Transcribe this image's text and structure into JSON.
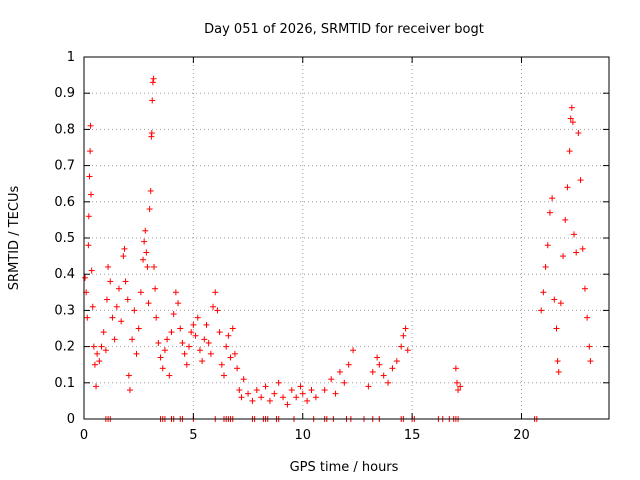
{
  "chart_data": {
    "type": "scatter",
    "title": "Day 051 of 2026, SRMTID for receiver bogt",
    "xlabel": "GPS time / hours",
    "ylabel": "SRMTID / TECUs",
    "xlim": [
      0,
      24
    ],
    "ylim": [
      0,
      1
    ],
    "xticks": [
      0,
      5,
      10,
      15,
      20
    ],
    "yticks": [
      0,
      0.1,
      0.2,
      0.3,
      0.4,
      0.5,
      0.6,
      0.7,
      0.8,
      0.9,
      1
    ],
    "grid": true,
    "marker": "+",
    "color": "#ff0000",
    "series": [
      {
        "name": "SRMTID",
        "points": [
          [
            0.05,
            0.39
          ],
          [
            0.1,
            0.35
          ],
          [
            0.15,
            0.28
          ],
          [
            0.2,
            0.48
          ],
          [
            0.22,
            0.56
          ],
          [
            0.25,
            0.67
          ],
          [
            0.28,
            0.74
          ],
          [
            0.3,
            0.81
          ],
          [
            0.32,
            0.62
          ],
          [
            0.35,
            0.41
          ],
          [
            0.4,
            0.31
          ],
          [
            0.45,
            0.2
          ],
          [
            0.5,
            0.15
          ],
          [
            0.55,
            0.09
          ],
          [
            0.6,
            0.18
          ],
          [
            0.7,
            0.16
          ],
          [
            0.8,
            0.2
          ],
          [
            0.9,
            0.24
          ],
          [
            1.0,
            0.19
          ],
          [
            1.05,
            0.33
          ],
          [
            1.1,
            0.42
          ],
          [
            1.2,
            0.38
          ],
          [
            1.3,
            0.28
          ],
          [
            1.4,
            0.22
          ],
          [
            1.5,
            0.31
          ],
          [
            1.6,
            0.36
          ],
          [
            1.7,
            0.27
          ],
          [
            1.8,
            0.45
          ],
          [
            1.85,
            0.47
          ],
          [
            1.9,
            0.38
          ],
          [
            2.0,
            0.33
          ],
          [
            2.05,
            0.12
          ],
          [
            2.1,
            0.08
          ],
          [
            2.2,
            0.22
          ],
          [
            2.3,
            0.3
          ],
          [
            2.4,
            0.18
          ],
          [
            2.5,
            0.25
          ],
          [
            2.6,
            0.35
          ],
          [
            2.7,
            0.44
          ],
          [
            2.75,
            0.49
          ],
          [
            2.8,
            0.52
          ],
          [
            2.85,
            0.46
          ],
          [
            2.9,
            0.42
          ],
          [
            2.95,
            0.32
          ],
          [
            3.0,
            0.58
          ],
          [
            3.05,
            0.63
          ],
          [
            3.08,
            0.78
          ],
          [
            3.1,
            0.79
          ],
          [
            3.12,
            0.88
          ],
          [
            3.15,
            0.93
          ],
          [
            3.18,
            0.94
          ],
          [
            3.2,
            0.42
          ],
          [
            3.25,
            0.36
          ],
          [
            3.3,
            0.28
          ],
          [
            3.4,
            0.21
          ],
          [
            3.5,
            0.17
          ],
          [
            3.6,
            0.14
          ],
          [
            3.7,
            0.19
          ],
          [
            3.8,
            0.22
          ],
          [
            3.9,
            0.12
          ],
          [
            4.0,
            0.24
          ],
          [
            4.1,
            0.29
          ],
          [
            4.2,
            0.35
          ],
          [
            4.3,
            0.32
          ],
          [
            4.4,
            0.25
          ],
          [
            4.5,
            0.21
          ],
          [
            4.6,
            0.18
          ],
          [
            4.7,
            0.15
          ],
          [
            4.8,
            0.2
          ],
          [
            4.9,
            0.24
          ],
          [
            5.0,
            0.26
          ],
          [
            5.1,
            0.23
          ],
          [
            5.2,
            0.28
          ],
          [
            5.3,
            0.19
          ],
          [
            5.4,
            0.16
          ],
          [
            5.5,
            0.22
          ],
          [
            5.6,
            0.26
          ],
          [
            5.7,
            0.21
          ],
          [
            5.8,
            0.18
          ],
          [
            5.9,
            0.31
          ],
          [
            6.0,
            0.35
          ],
          [
            6.1,
            0.3
          ],
          [
            6.2,
            0.24
          ],
          [
            6.3,
            0.15
          ],
          [
            6.4,
            0.12
          ],
          [
            6.5,
            0.2
          ],
          [
            6.6,
            0.23
          ],
          [
            6.7,
            0.17
          ],
          [
            6.8,
            0.25
          ],
          [
            6.9,
            0.18
          ],
          [
            7.0,
            0.14
          ],
          [
            7.1,
            0.08
          ],
          [
            7.2,
            0.06
          ],
          [
            7.3,
            0.11
          ],
          [
            7.5,
            0.07
          ],
          [
            7.7,
            0.05
          ],
          [
            7.9,
            0.08
          ],
          [
            8.1,
            0.06
          ],
          [
            8.3,
            0.09
          ],
          [
            8.5,
            0.05
          ],
          [
            8.7,
            0.07
          ],
          [
            8.9,
            0.1
          ],
          [
            9.1,
            0.06
          ],
          [
            9.3,
            0.04
          ],
          [
            9.5,
            0.08
          ],
          [
            9.7,
            0.06
          ],
          [
            9.9,
            0.09
          ],
          [
            10.0,
            0.07
          ],
          [
            10.2,
            0.05
          ],
          [
            10.4,
            0.08
          ],
          [
            10.6,
            0.06
          ],
          [
            11.0,
            0.08
          ],
          [
            11.3,
            0.11
          ],
          [
            11.5,
            0.07
          ],
          [
            11.7,
            0.13
          ],
          [
            11.9,
            0.1
          ],
          [
            12.1,
            0.15
          ],
          [
            12.3,
            0.19
          ],
          [
            13.0,
            0.09
          ],
          [
            13.2,
            0.13
          ],
          [
            13.4,
            0.17
          ],
          [
            13.5,
            0.15
          ],
          [
            13.7,
            0.12
          ],
          [
            13.9,
            0.1
          ],
          [
            14.1,
            0.14
          ],
          [
            14.3,
            0.16
          ],
          [
            14.5,
            0.2
          ],
          [
            14.6,
            0.23
          ],
          [
            14.7,
            0.25
          ],
          [
            14.8,
            0.19
          ],
          [
            17.0,
            0.14
          ],
          [
            17.05,
            0.1
          ],
          [
            17.1,
            0.08
          ],
          [
            17.2,
            0.09
          ],
          [
            20.9,
            0.3
          ],
          [
            21.0,
            0.35
          ],
          [
            21.1,
            0.42
          ],
          [
            21.2,
            0.48
          ],
          [
            21.3,
            0.57
          ],
          [
            21.4,
            0.61
          ],
          [
            21.5,
            0.33
          ],
          [
            21.6,
            0.25
          ],
          [
            21.65,
            0.16
          ],
          [
            21.7,
            0.13
          ],
          [
            21.8,
            0.32
          ],
          [
            21.9,
            0.45
          ],
          [
            22.0,
            0.55
          ],
          [
            22.1,
            0.64
          ],
          [
            22.2,
            0.74
          ],
          [
            22.25,
            0.83
          ],
          [
            22.3,
            0.86
          ],
          [
            22.35,
            0.82
          ],
          [
            22.4,
            0.51
          ],
          [
            22.5,
            0.46
          ],
          [
            22.6,
            0.79
          ],
          [
            22.7,
            0.66
          ],
          [
            22.8,
            0.47
          ],
          [
            22.9,
            0.36
          ],
          [
            23.0,
            0.28
          ],
          [
            23.1,
            0.2
          ],
          [
            23.15,
            0.16
          ]
        ]
      }
    ],
    "zero_points_x": [
      1.0,
      1.1,
      1.2,
      3.5,
      3.6,
      3.7,
      4.0,
      4.1,
      4.4,
      4.5,
      5.0,
      6.0,
      6.4,
      6.5,
      6.6,
      6.7,
      6.8,
      7.7,
      7.8,
      8.2,
      8.3,
      8.4,
      8.8,
      8.9,
      9.6,
      10.5,
      11.0,
      11.1,
      11.4,
      12.0,
      12.2,
      12.8,
      13.2,
      13.5,
      14.5,
      14.6,
      15.0,
      15.1,
      16.2,
      16.4,
      16.7,
      16.9,
      17.0,
      17.1,
      20.6,
      20.7
    ]
  }
}
